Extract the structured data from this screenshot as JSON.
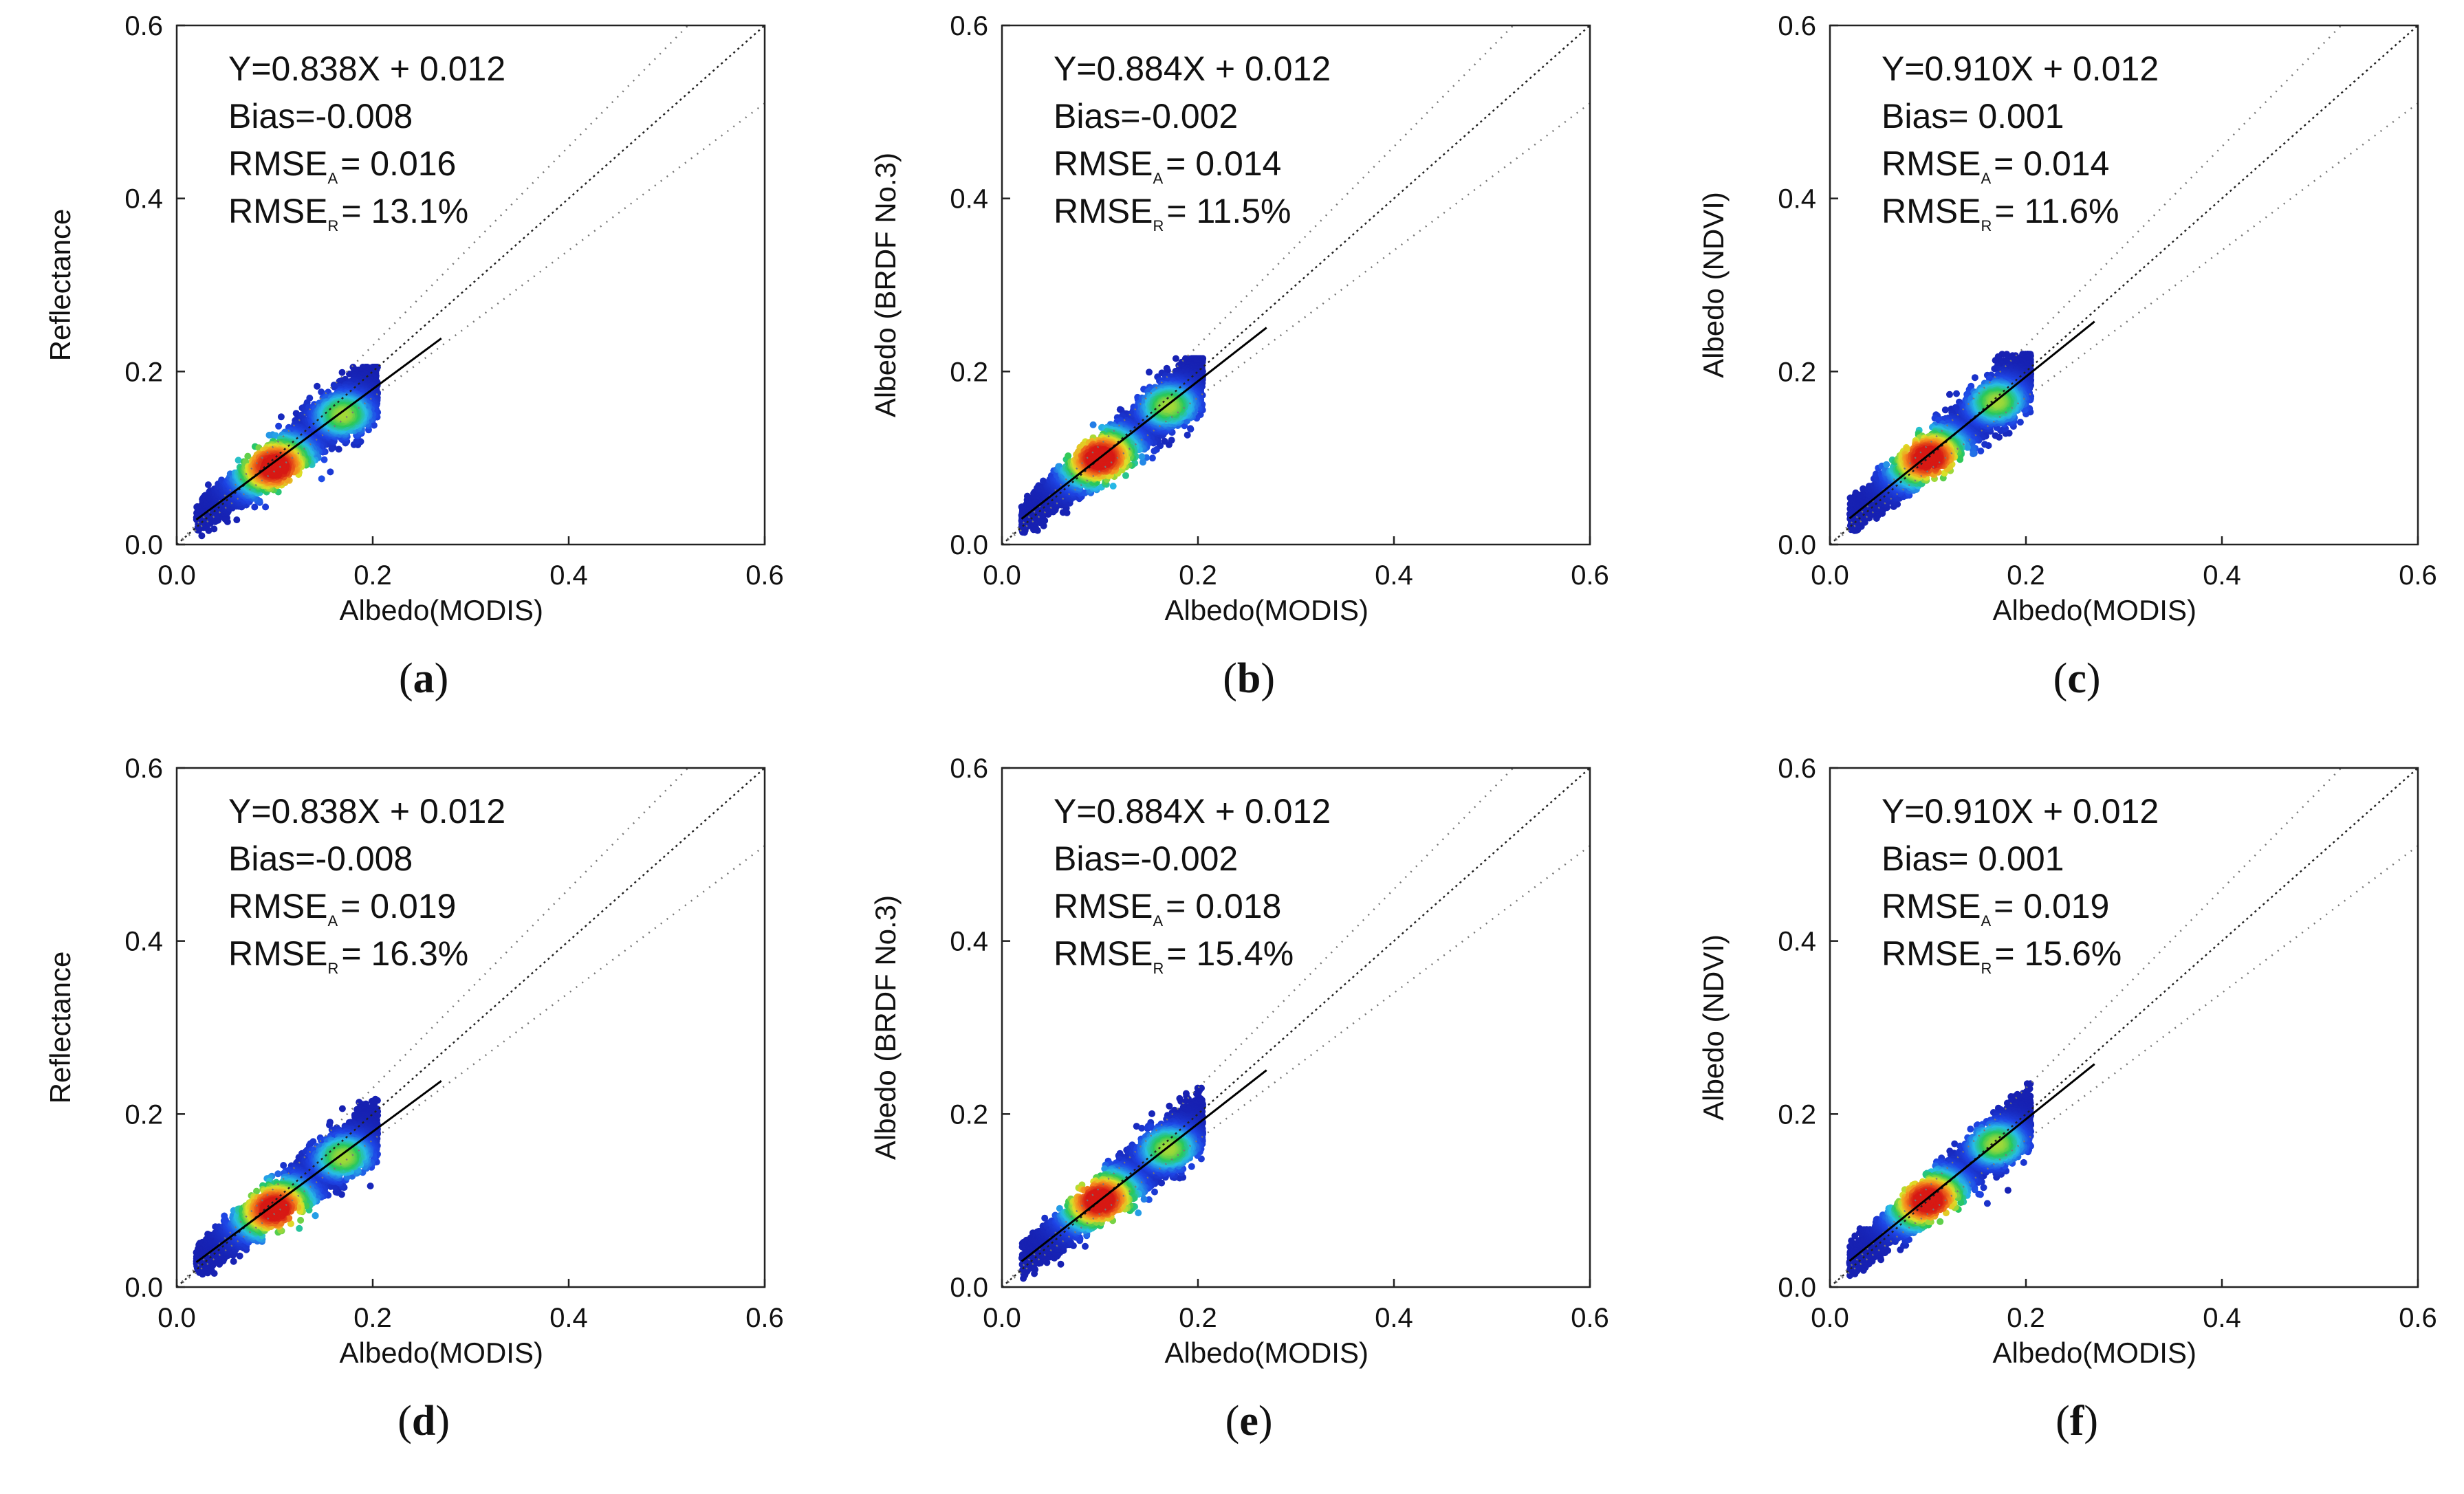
{
  "figure": {
    "caption_style": "serif-bold-letter-in-parentheses"
  },
  "chart_data": [
    {
      "id": "a",
      "panel_label": "a",
      "type": "scatter",
      "subtype": "density-scatter",
      "xlabel": "Albedo(MODIS)",
      "ylabel": "Reflectance",
      "xlim": [
        0.0,
        0.6
      ],
      "ylim": [
        0.0,
        0.6
      ],
      "xticks": [
        "0.0",
        "0.2",
        "0.4",
        "0.6"
      ],
      "yticks": [
        "0.0",
        "0.2",
        "0.4",
        "0.6"
      ],
      "fit": {
        "slope": 0.838,
        "intercept": 0.012,
        "x_range": [
          0.02,
          0.27
        ]
      },
      "reference_lines": [
        {
          "name": "1:1",
          "offset": 0.0
        },
        {
          "name": "+15%",
          "factor": 1.15
        },
        {
          "name": "-15%",
          "factor": 0.85
        }
      ],
      "stats": {
        "equation": "Y=0.838X + 0.012",
        "bias": "Bias=-0.008",
        "rmse_a_label": "RMSE",
        "rmse_a_sub": "A",
        "rmse_a_value": "= 0.016",
        "rmse_r_label": "RMSE",
        "rmse_r_sub": "R",
        "rmse_r_value": "= 13.1%"
      },
      "density": {
        "x_range": [
          0.02,
          0.205
        ],
        "y_range": [
          0.01,
          0.205
        ],
        "peak": [
          0.1,
          0.09
        ],
        "secondary_peak": [
          0.17,
          0.15
        ]
      }
    },
    {
      "id": "b",
      "panel_label": "b",
      "type": "scatter",
      "subtype": "density-scatter",
      "xlabel": "Albedo(MODIS)",
      "ylabel": "Albedo (BRDF No.3)",
      "xlim": [
        0.0,
        0.6
      ],
      "ylim": [
        0.0,
        0.6
      ],
      "xticks": [
        "0.0",
        "0.2",
        "0.4",
        "0.6"
      ],
      "yticks": [
        "0.0",
        "0.2",
        "0.4",
        "0.6"
      ],
      "fit": {
        "slope": 0.884,
        "intercept": 0.012,
        "x_range": [
          0.02,
          0.27
        ]
      },
      "reference_lines": [
        {
          "name": "1:1",
          "offset": 0.0
        },
        {
          "name": "+15%",
          "factor": 1.15
        },
        {
          "name": "-15%",
          "factor": 0.85
        }
      ],
      "stats": {
        "equation": "Y=0.884X + 0.012",
        "bias": "Bias=-0.002",
        "rmse_a_label": "RMSE",
        "rmse_a_sub": "A",
        "rmse_a_value": "= 0.014",
        "rmse_r_label": "RMSE",
        "rmse_r_sub": "R",
        "rmse_r_value": "= 11.5%"
      },
      "density": {
        "x_range": [
          0.02,
          0.205
        ],
        "y_range": [
          0.01,
          0.215
        ],
        "peak": [
          0.1,
          0.1
        ],
        "secondary_peak": [
          0.17,
          0.16
        ]
      }
    },
    {
      "id": "c",
      "panel_label": "c",
      "type": "scatter",
      "subtype": "density-scatter",
      "xlabel": "Albedo(MODIS)",
      "ylabel": "Albedo (NDVI)",
      "xlim": [
        0.0,
        0.6
      ],
      "ylim": [
        0.0,
        0.6
      ],
      "xticks": [
        "0.0",
        "0.2",
        "0.4",
        "0.6"
      ],
      "yticks": [
        "0.0",
        "0.2",
        "0.4",
        "0.6"
      ],
      "fit": {
        "slope": 0.91,
        "intercept": 0.012,
        "x_range": [
          0.02,
          0.27
        ]
      },
      "reference_lines": [
        {
          "name": "1:1",
          "offset": 0.0
        },
        {
          "name": "+15%",
          "factor": 1.15
        },
        {
          "name": "-15%",
          "factor": 0.85
        }
      ],
      "stats": {
        "equation": "Y=0.910X + 0.012",
        "bias": "Bias= 0.001",
        "rmse_a_label": "RMSE",
        "rmse_a_sub": "A",
        "rmse_a_value": "= 0.014",
        "rmse_r_label": "RMSE",
        "rmse_r_sub": "R",
        "rmse_r_value": "= 11.6%"
      },
      "density": {
        "x_range": [
          0.02,
          0.205
        ],
        "y_range": [
          0.01,
          0.22
        ],
        "peak": [
          0.1,
          0.1
        ],
        "secondary_peak": [
          0.17,
          0.165
        ]
      }
    },
    {
      "id": "d",
      "panel_label": "d",
      "type": "scatter",
      "subtype": "density-scatter",
      "xlabel": "Albedo(MODIS)",
      "ylabel": "Reflectance",
      "xlim": [
        0.0,
        0.6
      ],
      "ylim": [
        0.0,
        0.6
      ],
      "xticks": [
        "0.0",
        "0.2",
        "0.4",
        "0.6"
      ],
      "yticks": [
        "0.0",
        "0.2",
        "0.4",
        "0.6"
      ],
      "fit": {
        "slope": 0.838,
        "intercept": 0.012,
        "x_range": [
          0.02,
          0.27
        ]
      },
      "reference_lines": [
        {
          "name": "1:1",
          "offset": 0.0
        },
        {
          "name": "+15%",
          "factor": 1.15
        },
        {
          "name": "-15%",
          "factor": 0.85
        }
      ],
      "stats": {
        "equation": "Y=0.838X + 0.012",
        "bias": "Bias=-0.008",
        "rmse_a_label": "RMSE",
        "rmse_a_sub": "A",
        "rmse_a_value": "= 0.019",
        "rmse_r_label": "RMSE",
        "rmse_r_sub": "R",
        "rmse_r_value": "= 16.3%"
      },
      "density": {
        "x_range": [
          0.02,
          0.205
        ],
        "y_range": [
          0.01,
          0.22
        ],
        "peak": [
          0.1,
          0.09
        ],
        "secondary_peak": [
          0.17,
          0.15
        ]
      }
    },
    {
      "id": "e",
      "panel_label": "e",
      "type": "scatter",
      "subtype": "density-scatter",
      "xlabel": "Albedo(MODIS)",
      "ylabel": "Albedo (BRDF No.3)",
      "xlim": [
        0.0,
        0.6
      ],
      "ylim": [
        0.0,
        0.6
      ],
      "xticks": [
        "0.0",
        "0.2",
        "0.4",
        "0.6"
      ],
      "yticks": [
        "0.0",
        "0.2",
        "0.4",
        "0.6"
      ],
      "fit": {
        "slope": 0.884,
        "intercept": 0.012,
        "x_range": [
          0.02,
          0.27
        ]
      },
      "reference_lines": [
        {
          "name": "1:1",
          "offset": 0.0
        },
        {
          "name": "+15%",
          "factor": 1.15
        },
        {
          "name": "-15%",
          "factor": 0.85
        }
      ],
      "stats": {
        "equation": "Y=0.884X + 0.012",
        "bias": "Bias=-0.002",
        "rmse_a_label": "RMSE",
        "rmse_a_sub": "A",
        "rmse_a_value": "= 0.018",
        "rmse_r_label": "RMSE",
        "rmse_r_sub": "R",
        "rmse_r_value": "= 15.4%"
      },
      "density": {
        "x_range": [
          0.02,
          0.205
        ],
        "y_range": [
          0.01,
          0.23
        ],
        "peak": [
          0.1,
          0.1
        ],
        "secondary_peak": [
          0.17,
          0.16
        ]
      }
    },
    {
      "id": "f",
      "panel_label": "f",
      "type": "scatter",
      "subtype": "density-scatter",
      "xlabel": "Albedo(MODIS)",
      "ylabel": "Albedo (NDVI)",
      "xlim": [
        0.0,
        0.6
      ],
      "ylim": [
        0.0,
        0.6
      ],
      "xticks": [
        "0.0",
        "0.2",
        "0.4",
        "0.6"
      ],
      "yticks": [
        "0.0",
        "0.2",
        "0.4",
        "0.6"
      ],
      "fit": {
        "slope": 0.91,
        "intercept": 0.012,
        "x_range": [
          0.02,
          0.27
        ]
      },
      "reference_lines": [
        {
          "name": "1:1",
          "offset": 0.0
        },
        {
          "name": "+15%",
          "factor": 1.15
        },
        {
          "name": "-15%",
          "factor": 0.85
        }
      ],
      "stats": {
        "equation": "Y=0.910X + 0.012",
        "bias": "Bias= 0.001",
        "rmse_a_label": "RMSE",
        "rmse_a_sub": "A",
        "rmse_a_value": "= 0.019",
        "rmse_r_label": "RMSE",
        "rmse_r_sub": "R",
        "rmse_r_value": "= 15.6%"
      },
      "density": {
        "x_range": [
          0.02,
          0.205
        ],
        "y_range": [
          0.01,
          0.235
        ],
        "peak": [
          0.1,
          0.1
        ],
        "secondary_peak": [
          0.17,
          0.165
        ]
      }
    }
  ]
}
